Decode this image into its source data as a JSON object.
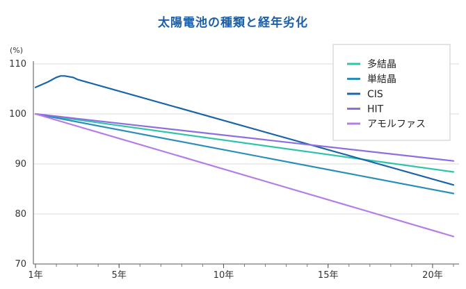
{
  "chart_data": {
    "type": "line",
    "title": "太陽電池の種類と経年劣化",
    "y_unit": "(%)",
    "ylim": [
      70,
      110
    ],
    "y_ticks": [
      70,
      80,
      90,
      100,
      110
    ],
    "xlim": [
      1,
      21
    ],
    "x_ticks": [
      {
        "value": 1,
        "label": "1年"
      },
      {
        "value": 5,
        "label": "5年"
      },
      {
        "value": 10,
        "label": "10年"
      },
      {
        "value": 15,
        "label": "15年"
      },
      {
        "value": 20,
        "label": "20年"
      }
    ],
    "grid": true,
    "legend_position": "top-right",
    "series": [
      {
        "name": "多結晶",
        "color": "#2ec4a9",
        "points": [
          [
            1,
            100
          ],
          [
            21,
            88.4
          ]
        ]
      },
      {
        "name": "単結晶",
        "color": "#2a8fb8",
        "points": [
          [
            1,
            100
          ],
          [
            21,
            84.1
          ]
        ]
      },
      {
        "name": "CIS",
        "color": "#1a64a8",
        "points": [
          [
            1,
            105.3
          ],
          [
            1.6,
            106.4
          ],
          [
            2,
            107.3
          ],
          [
            2.2,
            107.6
          ],
          [
            2.4,
            107.6
          ],
          [
            2.8,
            107.3
          ],
          [
            3,
            106.9
          ],
          [
            21,
            85.8
          ]
        ]
      },
      {
        "name": "HIT",
        "color": "#8c6ee0",
        "points": [
          [
            1,
            100
          ],
          [
            21,
            90.6
          ]
        ]
      },
      {
        "name": "アモルファス",
        "color": "#b57ee6",
        "points": [
          [
            1,
            100
          ],
          [
            21,
            75.5
          ]
        ]
      }
    ]
  }
}
